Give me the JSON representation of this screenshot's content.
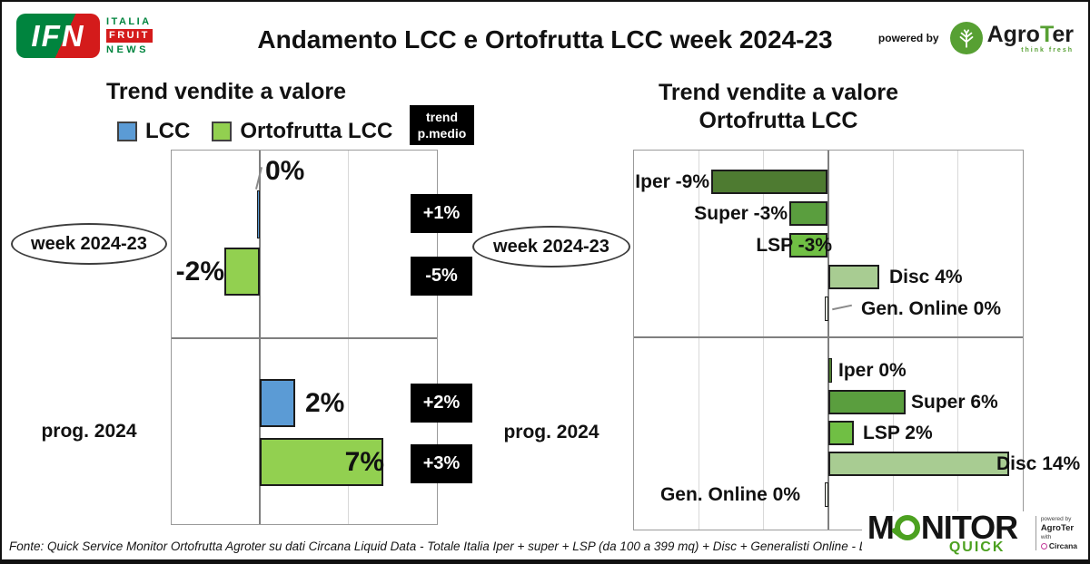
{
  "header": {
    "title": "Andamento LCC e Ortofrutta LCC week 2024-23",
    "ifn_logo": {
      "acronym": "IFN",
      "line1": "ITALIA",
      "line2": "FRUIT",
      "line3": "NEWS"
    },
    "powered_by": "powered by",
    "agroter": {
      "prefix": "Agro",
      "t": "T",
      "suffix": "er",
      "tagline": "think fresh"
    }
  },
  "chart_data": [
    {
      "type": "bar",
      "orientation": "horizontal",
      "title": "Trend vendite a valore",
      "groups": [
        "week 2024-23",
        "prog. 2024"
      ],
      "series": [
        {
          "name": "LCC",
          "color": "#5b9bd5",
          "values": [
            0,
            2
          ]
        },
        {
          "name": "Ortofrutta LCC",
          "color": "#92d050",
          "values": [
            -2,
            7
          ]
        }
      ],
      "data_labels": [
        "0%",
        "-2%",
        "2%",
        "7%"
      ],
      "xlim": [
        -5,
        10
      ],
      "gridline_step_pct": 5,
      "grid": true,
      "trend_p_medio": {
        "header_line1": "trend",
        "header_line2": "p.medio",
        "values": [
          "+1%",
          "-5%",
          "+2%",
          "+3%"
        ]
      }
    },
    {
      "type": "bar",
      "orientation": "horizontal",
      "title_line1": "Trend vendite a valore",
      "title_line2": "Ortofrutta LCC",
      "categories": [
        "Iper",
        "Super",
        "LSP",
        "Disc",
        "Gen. Online"
      ],
      "series": [
        {
          "name": "week 2024-23",
          "values": [
            -9,
            -3,
            -3,
            4,
            0
          ]
        },
        {
          "name": "prog. 2024",
          "values": [
            0,
            6,
            2,
            14,
            0
          ]
        }
      ],
      "bar_colors": [
        "#4e7b31",
        "#5a9e3e",
        "#70bf44",
        "#a8cc92",
        "#eaf3e4"
      ],
      "labels": [
        [
          "Iper -9%",
          "Super -3%",
          "LSP -3%",
          "Disc 4%",
          "Gen. Online 0%"
        ],
        [
          "Iper 0%",
          "Super 6%",
          "LSP 2%",
          "Disc 14%",
          "Gen. Online 0%"
        ]
      ],
      "xlim": [
        -15,
        15
      ],
      "gridline_step_pct": 5,
      "grid": true
    }
  ],
  "footer": {
    "fonte": "Fonte: Quick Service Monitor Ortofrutta Agroter su dati Circana Liquid Data - Totale Italia Iper + super + LSP (da 100 a 399 mq) + Disc + Generalisti Online - LCC",
    "monitor_logo": {
      "word_start": "M",
      "word_end": "NITOR",
      "quick": "QUICK",
      "powered_by": "powered by",
      "agroter": "AgroTer",
      "with": "with",
      "circana": "Circana"
    }
  }
}
